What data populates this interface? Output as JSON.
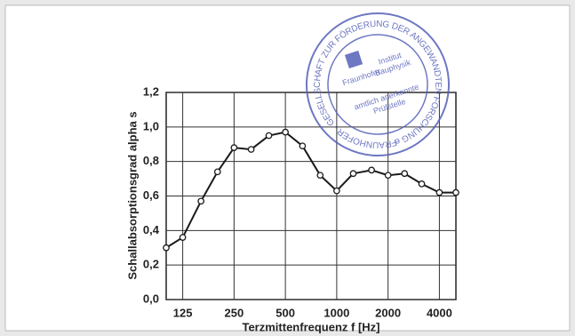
{
  "chart_data": {
    "type": "line",
    "x_label": "Terzmittenfrequenz f [Hz]",
    "y_label": "Schallabsorptionsgrad alpha s",
    "x": [
      100,
      125,
      160,
      200,
      250,
      315,
      400,
      500,
      630,
      800,
      1000,
      1250,
      1600,
      2000,
      2500,
      3150,
      4000,
      5000
    ],
    "series": [
      {
        "color": "#1a1a1a",
        "values": [
          0.3,
          0.36,
          0.57,
          0.74,
          0.88,
          0.87,
          0.95,
          0.97,
          0.89,
          0.72,
          0.63,
          0.73,
          0.75,
          0.72,
          0.73,
          0.67,
          0.62,
          0.62
        ]
      }
    ],
    "xlim": [
      100,
      5000
    ],
    "xticks": [
      125,
      250,
      500,
      1000,
      2000,
      4000
    ],
    "log_x": true,
    "ylim": [
      0,
      1.2
    ],
    "yticks": [
      {
        "value": 0,
        "label": "0,0"
      },
      {
        "value": 0.2,
        "label": "0,2"
      },
      {
        "value": 0.4,
        "label": "0,4"
      },
      {
        "value": 0.6,
        "label": "0,6"
      },
      {
        "value": 0.8,
        "label": "0,8"
      },
      {
        "value": 1.0,
        "label": "1,0"
      },
      {
        "value": 1.2,
        "label": "1,2"
      }
    ],
    "grid": true
  },
  "stamp": {
    "ring_text": "FRAUNHOFER - GESELLSCHAFT ZUR FÖRDERUNG DER ANGEWANDTEN FORSCHUNG e.V.",
    "lines": [
      "Fraunhofer",
      "Institut",
      "Bauphysik",
      "amtlich anerkannte",
      "Prüfstelle"
    ]
  }
}
